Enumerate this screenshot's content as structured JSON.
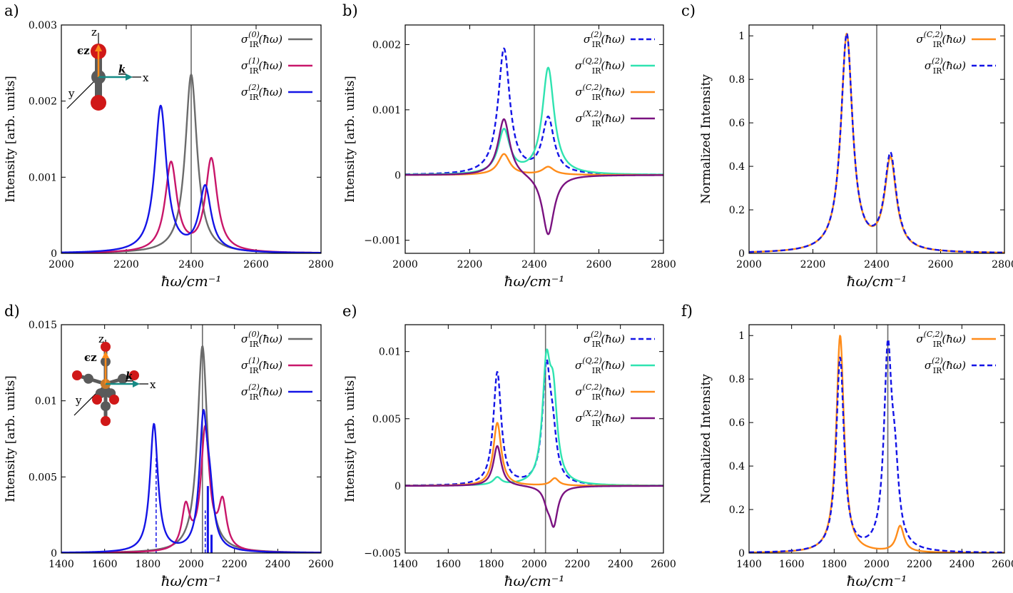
{
  "colors": {
    "gray": "#6b6b6b",
    "magenta": "#c8166a",
    "blue": "#1414e6",
    "teal": "#2fe3b0",
    "orange": "#ff8c1a",
    "purple": "#7a1280",
    "dark_teal": "#168a85",
    "atom_red": "#d01818",
    "atom_gray": "#5a5a5a"
  },
  "chart_data": [
    {
      "panel": "a)",
      "type": "line",
      "xlabel": "ħω/cm⁻¹",
      "ylabel": "Intensity [arb. units]",
      "xlim": [
        2000,
        2800
      ],
      "ylim": [
        0,
        0.003
      ],
      "xticks": [
        2000,
        2200,
        2400,
        2600,
        2800
      ],
      "yticks": [
        0,
        0.001,
        0.002,
        0.003
      ],
      "ytick_labels": [
        "0",
        "0.001",
        "0.002",
        "0.003"
      ],
      "vline": 2400,
      "inset": {
        "axis_labels": [
          "z",
          "x",
          "y"
        ],
        "epsilon_label": "ϵz",
        "k_label": "k",
        "molecule": "CO2"
      },
      "series": [
        {
          "name": "σIR(0)(ħω)",
          "base": "σ",
          "sub": "IR",
          "sup": "(0)",
          "arg": "(ħω)",
          "color_key": "gray",
          "dash": false,
          "peaks": [
            {
              "center": 2400,
              "hwhm": 22,
              "height": 0.00235
            }
          ]
        },
        {
          "name": "σIR(1)(ħω)",
          "base": "σ",
          "sub": "IR",
          "sup": "(1)",
          "arg": "(ħω)",
          "color_key": "magenta",
          "dash": false,
          "peaks": [
            {
              "center": 2338,
              "hwhm": 22,
              "height": 0.00117
            },
            {
              "center": 2462,
              "hwhm": 22,
              "height": 0.00122
            }
          ]
        },
        {
          "name": "σIR(2)(ħω)",
          "base": "σ",
          "sub": "IR",
          "sup": "(2)",
          "arg": "(ħω)",
          "color_key": "blue",
          "dash": false,
          "peaks": [
            {
              "center": 2306,
              "hwhm": 22,
              "height": 0.00192
            },
            {
              "center": 2443,
              "hwhm": 22,
              "height": 0.00085
            }
          ]
        }
      ]
    },
    {
      "panel": "b)",
      "type": "line",
      "xlabel": "ħω/cm⁻¹",
      "ylabel": "Intensity [arb. units]",
      "xlim": [
        2000,
        2800
      ],
      "ylim": [
        -0.0012,
        0.0023
      ],
      "xticks": [
        2000,
        2200,
        2400,
        2600,
        2800
      ],
      "yticks": [
        -0.001,
        0,
        0.001,
        0.002
      ],
      "ytick_labels": [
        "−0.001",
        "0",
        "0.001",
        "0.002"
      ],
      "vline": 2400,
      "series": [
        {
          "name": "σIR(2)(ħω)",
          "base": "σ",
          "sub": "IR",
          "sup": "(2)",
          "arg": "(ħω)",
          "color_key": "blue",
          "dash": true,
          "peaks": [
            {
              "center": 2306,
              "hwhm": 22,
              "height": 0.00192
            },
            {
              "center": 2443,
              "hwhm": 22,
              "height": 0.00085
            }
          ]
        },
        {
          "name": "σIR(Q,2)(ħω)",
          "base": "σ",
          "sub": "IR",
          "sup": "(Q,2)",
          "arg": "(ħω)",
          "color_key": "teal",
          "dash": false,
          "peaks": [
            {
              "center": 2306,
              "hwhm": 22,
              "height": 0.00067
            },
            {
              "center": 2443,
              "hwhm": 22,
              "height": 0.00163
            }
          ]
        },
        {
          "name": "σIR(C,2)(ħω)",
          "base": "σ",
          "sub": "IR",
          "sup": "(C,2)",
          "arg": "(ħω)",
          "color_key": "orange",
          "dash": false,
          "peaks": [
            {
              "center": 2306,
              "hwhm": 22,
              "height": 0.00032
            },
            {
              "center": 2443,
              "hwhm": 22,
              "height": 0.00012
            }
          ]
        },
        {
          "name": "σIR(X,2)(ħω)",
          "base": "σ",
          "sub": "IR",
          "sup": "(X,2)",
          "arg": "(ħω)",
          "color_key": "purple",
          "dash": false,
          "peaks": [
            {
              "center": 2306,
              "hwhm": 22,
              "height": 0.00088
            },
            {
              "center": 2443,
              "hwhm": 22,
              "height": -0.00093
            }
          ]
        }
      ]
    },
    {
      "panel": "c)",
      "type": "line",
      "xlabel": "ħω/cm⁻¹",
      "ylabel": "Normalized Intensity",
      "xlim": [
        2000,
        2800
      ],
      "ylim": [
        0,
        1.05
      ],
      "xticks": [
        2000,
        2200,
        2400,
        2600,
        2800
      ],
      "yticks": [
        0,
        0.2,
        0.4,
        0.6,
        0.8,
        1
      ],
      "ytick_labels": [
        "0",
        "0.2",
        "0.4",
        "0.6",
        "0.8",
        "1"
      ],
      "vline": 2400,
      "series": [
        {
          "name": "σIR(C,2)(ħω)",
          "base": "σ",
          "sub": "IR",
          "sup": "(C,2)",
          "arg": "(ħω)",
          "color_key": "orange",
          "dash": false,
          "peaks": [
            {
              "center": 2306,
              "hwhm": 22,
              "height": 1.0
            },
            {
              "center": 2443,
              "hwhm": 22,
              "height": 0.42
            }
          ]
        },
        {
          "name": "σIR(2)(ħω)",
          "base": "σ",
          "sub": "IR",
          "sup": "(2)",
          "arg": "(ħω)",
          "color_key": "blue",
          "dash": true,
          "peaks": [
            {
              "center": 2306,
              "hwhm": 22,
              "height": 1.0
            },
            {
              "center": 2443,
              "hwhm": 22,
              "height": 0.44
            }
          ]
        }
      ]
    },
    {
      "panel": "d)",
      "type": "line",
      "xlabel": "ħω/cm⁻¹",
      "ylabel": "Intensity [arb. units]",
      "xlim": [
        1400,
        2600
      ],
      "ylim": [
        0,
        0.015
      ],
      "xticks": [
        1400,
        1600,
        1800,
        2000,
        2200,
        2400,
        2600
      ],
      "yticks": [
        0,
        0.005,
        0.01,
        0.015
      ],
      "ytick_labels": [
        "0",
        "0.005",
        "0.01",
        "0.015"
      ],
      "vline": 2052,
      "inset": {
        "axis_labels": [
          "z",
          "x",
          "y"
        ],
        "epsilon_label": "ϵz",
        "k_label": "k",
        "molecule": "Cr(CO)6"
      },
      "sticks": [
        {
          "x": 1838,
          "height": 0.0063,
          "color_key": "blue",
          "dash": true
        },
        {
          "x": 2065,
          "height": 0.0028,
          "color_key": "blue",
          "dash": true
        },
        {
          "x": 2077,
          "height": 0.0044,
          "color_key": "blue",
          "dash": false
        },
        {
          "x": 2094,
          "height": 0.0012,
          "color_key": "blue",
          "dash": false
        }
      ],
      "series": [
        {
          "name": "σIR(0)(ħω)",
          "base": "σ",
          "bar": false,
          "sub": "IR",
          "sup": "(0)",
          "arg": "(ħω)",
          "color_key": "gray",
          "dash": false,
          "peaks": [
            {
              "center": 2052,
              "hwhm": 28,
              "height": 0.0136
            }
          ]
        },
        {
          "name": "σ̄IR(1)(ħω)",
          "base": "σ",
          "bar": true,
          "sub": "IR",
          "sup": "(1)",
          "arg": "(ħω)",
          "color_key": "magenta",
          "dash": false,
          "peaks": [
            {
              "center": 1975,
              "hwhm": 22,
              "height": 0.0028
            },
            {
              "center": 2065,
              "hwhm": 24,
              "height": 0.008
            },
            {
              "center": 2145,
              "hwhm": 22,
              "height": 0.003
            }
          ]
        },
        {
          "name": "σ̄IR(2)(ħω)",
          "base": "σ",
          "bar": true,
          "sub": "IR",
          "sup": "(2)",
          "arg": "(ħω)",
          "color_key": "blue",
          "dash": false,
          "peaks": [
            {
              "center": 1828,
              "hwhm": 22,
              "height": 0.0084
            },
            {
              "center": 2056,
              "hwhm": 22,
              "height": 0.0082
            },
            {
              "center": 2085,
              "hwhm": 22,
              "height": 0.003
            }
          ]
        }
      ]
    },
    {
      "panel": "e)",
      "type": "line",
      "xlabel": "ħω/cm⁻¹",
      "ylabel": "Intensity [arb. units]",
      "xlim": [
        1400,
        2600
      ],
      "ylim": [
        -0.005,
        0.012
      ],
      "xticks": [
        1400,
        1600,
        1800,
        2000,
        2200,
        2400,
        2600
      ],
      "yticks": [
        -0.005,
        0,
        0.005,
        0.01
      ],
      "ytick_labels": [
        "−0.005",
        "0",
        "0.005",
        "0.01"
      ],
      "vline": 2052,
      "series": [
        {
          "name": "σ̄IR(2)(ħω)",
          "base": "σ",
          "bar": true,
          "sub": "IR",
          "sup": "(2)",
          "arg": "(ħω)",
          "color_key": "blue",
          "dash": true,
          "peaks": [
            {
              "center": 1828,
              "hwhm": 22,
              "height": 0.0084
            },
            {
              "center": 2056,
              "hwhm": 22,
              "height": 0.0082
            },
            {
              "center": 2085,
              "hwhm": 22,
              "height": 0.003
            }
          ]
        },
        {
          "name": "σ̄IR(Q,2)(ħω)",
          "base": "σ",
          "bar": true,
          "sub": "IR",
          "sup": "(Q,2)",
          "arg": "(ħω)",
          "color_key": "teal",
          "dash": false,
          "peaks": [
            {
              "center": 1828,
              "hwhm": 22,
              "height": 0.00055
            },
            {
              "center": 2056,
              "hwhm": 22,
              "height": 0.0082
            },
            {
              "center": 2088,
              "hwhm": 22,
              "height": 0.0058
            }
          ]
        },
        {
          "name": "σ̄IR(C,2)(ħω)",
          "base": "σ",
          "bar": true,
          "sub": "IR",
          "sup": "(C,2)",
          "arg": "(ħω)",
          "color_key": "orange",
          "dash": false,
          "peaks": [
            {
              "center": 1828,
              "hwhm": 22,
              "height": 0.0047
            },
            {
              "center": 2095,
              "hwhm": 22,
              "height": 0.00055
            }
          ]
        },
        {
          "name": "σ̄IR(X,2)(ħω)",
          "base": "σ",
          "bar": true,
          "sub": "IR",
          "sup": "(X,2)",
          "arg": "(ħω)",
          "color_key": "purple",
          "dash": false,
          "peaks": [
            {
              "center": 1828,
              "hwhm": 22,
              "height": 0.003
            },
            {
              "center": 2060,
              "hwhm": 20,
              "height": -0.0009
            },
            {
              "center": 2090,
              "hwhm": 22,
              "height": -0.0028
            }
          ]
        }
      ]
    },
    {
      "panel": "f)",
      "type": "line",
      "xlabel": "ħω/cm⁻¹",
      "ylabel": "Normalized Intensity",
      "xlim": [
        1400,
        2600
      ],
      "ylim": [
        0,
        1.05
      ],
      "xticks": [
        1400,
        1600,
        1800,
        2000,
        2200,
        2400,
        2600
      ],
      "yticks": [
        0,
        0.2,
        0.4,
        0.6,
        0.8,
        1
      ],
      "ytick_labels": [
        "0",
        "0.2",
        "0.4",
        "0.6",
        "0.8",
        "1"
      ],
      "vline": 2052,
      "series": [
        {
          "name": "σIR(C,2)(ħω)",
          "base": "σ",
          "bar": false,
          "sub": "IR",
          "sup": "(C,2)",
          "arg": "(ħω)",
          "color_key": "orange",
          "dash": false,
          "peaks": [
            {
              "center": 1828,
              "hwhm": 22,
              "height": 1.0
            },
            {
              "center": 2110,
              "hwhm": 22,
              "height": 0.12
            }
          ]
        },
        {
          "name": "σIR(2)(ħω)",
          "base": "σ",
          "bar": false,
          "sub": "IR",
          "sup": "(2)",
          "arg": "(ħω)",
          "color_key": "blue",
          "dash": true,
          "peaks": [
            {
              "center": 1828,
              "hwhm": 22,
              "height": 0.89
            },
            {
              "center": 2052,
              "hwhm": 22,
              "height": 0.88
            },
            {
              "center": 2085,
              "hwhm": 22,
              "height": 0.3
            }
          ]
        }
      ]
    }
  ]
}
